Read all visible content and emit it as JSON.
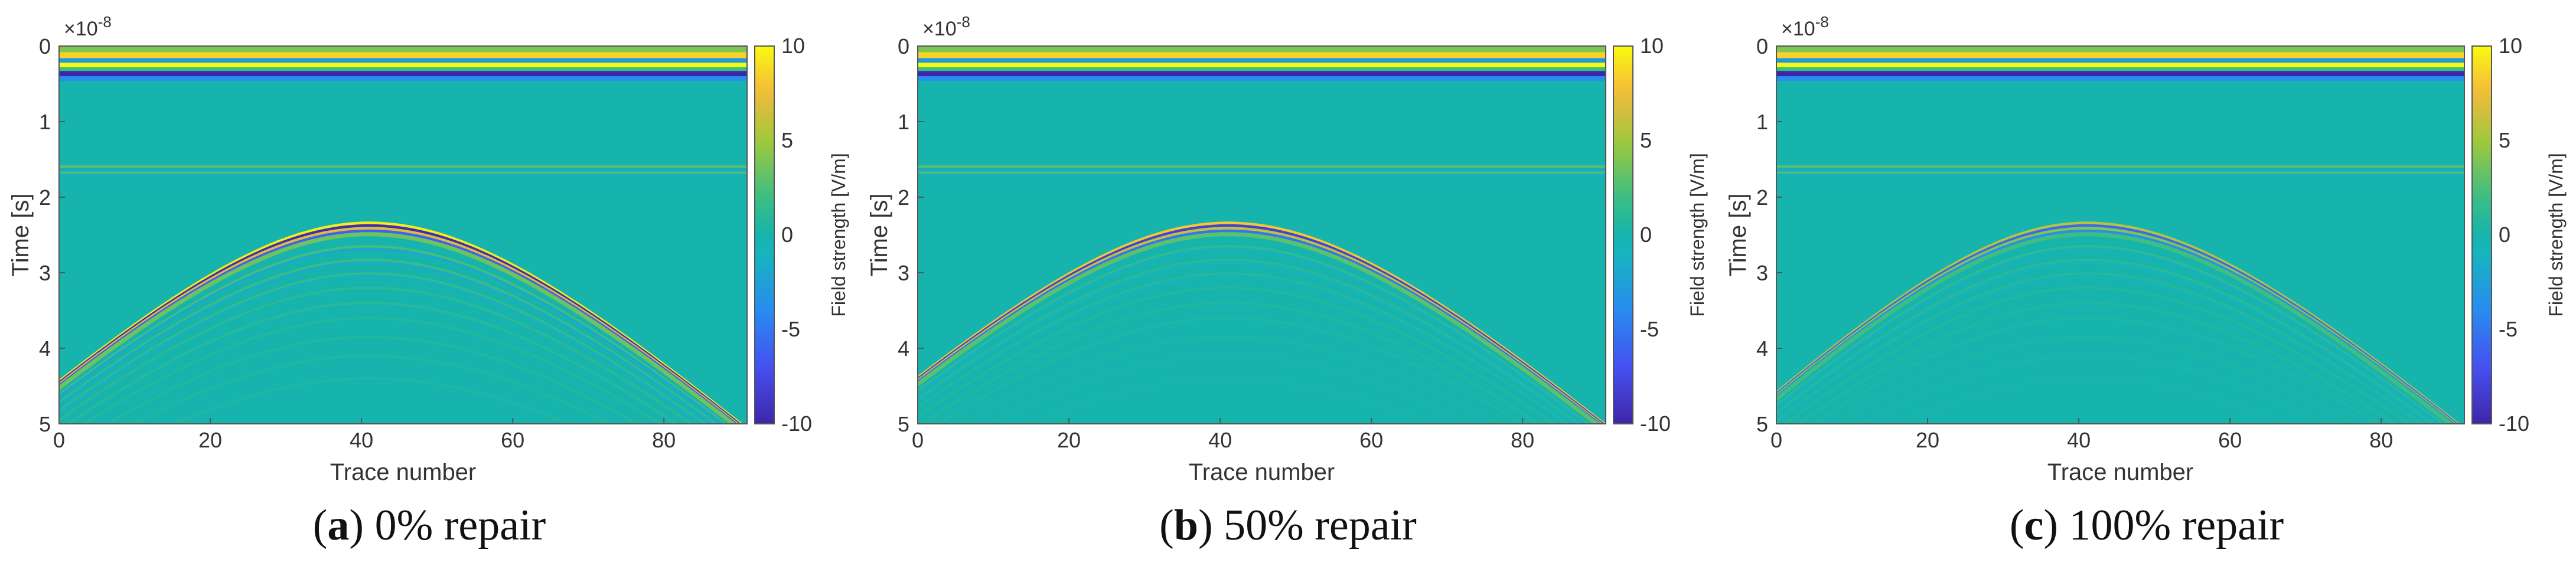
{
  "chart_data": [
    {
      "type": "heatmap",
      "panel_letter": "a",
      "caption_rest": " 0% repair",
      "xlabel": "Trace number",
      "ylabel": "Time [s]",
      "y_multiplier": "×10",
      "y_exponent": "-8",
      "xlim": [
        0,
        91
      ],
      "ylim": [
        0,
        5
      ],
      "xticks": [
        "0",
        "20",
        "40",
        "60",
        "80"
      ],
      "yticks": [
        "0",
        "1",
        "2",
        "3",
        "4",
        "5"
      ],
      "colorbar_label": "Field strength [V/m]",
      "clim": [
        -10,
        10
      ],
      "cticks": [
        "10",
        "5",
        "0",
        "-5",
        "-10"
      ],
      "hyperbola": {
        "apex_trace": 41,
        "apex_time": 2.35,
        "edge_time_at_0": 4.45,
        "edge_time_at_90": 5.0,
        "amplitude": 1.0,
        "tails": 1.0
      }
    },
    {
      "type": "heatmap",
      "panel_letter": "b",
      "caption_rest": " 50% repair",
      "xlabel": "Trace number",
      "ylabel": "Time [s]",
      "y_multiplier": "×10",
      "y_exponent": "-8",
      "xlim": [
        0,
        91
      ],
      "ylim": [
        0,
        5
      ],
      "xticks": [
        "0",
        "20",
        "40",
        "60",
        "80"
      ],
      "yticks": [
        "0",
        "1",
        "2",
        "3",
        "4",
        "5"
      ],
      "colorbar_label": "Field strength [V/m]",
      "clim": [
        -10,
        10
      ],
      "cticks": [
        "10",
        "5",
        "0",
        "-5",
        "-10"
      ],
      "hyperbola": {
        "apex_trace": 41,
        "apex_time": 2.35,
        "edge_time_at_0": 4.4,
        "edge_time_at_90": 4.95,
        "amplitude": 0.85,
        "tails": 0.7
      }
    },
    {
      "type": "heatmap",
      "panel_letter": "c",
      "caption_rest": " 100% repair",
      "xlabel": "Trace number",
      "ylabel": "Time [s]",
      "y_multiplier": "×10",
      "y_exponent": "-8",
      "xlim": [
        0,
        91
      ],
      "ylim": [
        0,
        5
      ],
      "xticks": [
        "0",
        "20",
        "40",
        "60",
        "80"
      ],
      "yticks": [
        "0",
        "1",
        "2",
        "3",
        "4",
        "5"
      ],
      "colorbar_label": "Field strength [V/m]",
      "clim": [
        -10,
        10
      ],
      "cticks": [
        "10",
        "5",
        "0",
        "-5",
        "-10"
      ],
      "hyperbola": {
        "apex_trace": 41,
        "apex_time": 2.35,
        "edge_time_at_0": 4.6,
        "edge_time_at_90": 5.0,
        "amplitude": 0.6,
        "tails": 1.0
      }
    }
  ],
  "colors": {
    "background_field": "#16b4ad",
    "parula_low": "#3e26a8",
    "parula_high": "#f9fb0e"
  }
}
